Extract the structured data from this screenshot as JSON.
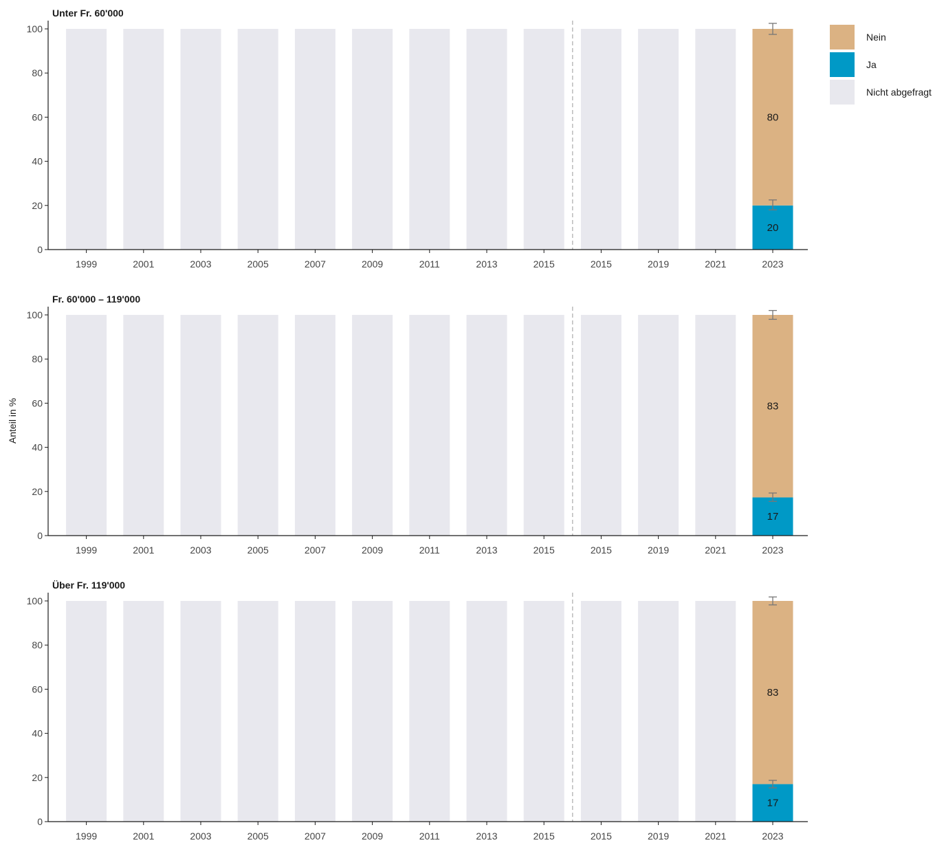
{
  "chart_data": {
    "type": "bar",
    "stacked": true,
    "ylabel": "Anteil in %",
    "ylim": [
      0,
      100
    ],
    "yticks": [
      0,
      20,
      40,
      60,
      80,
      100
    ],
    "categories": [
      "1999",
      "2001",
      "2003",
      "2005",
      "2007",
      "2009",
      "2011",
      "2013",
      "2015",
      "2015",
      "2019",
      "2021",
      "2023"
    ],
    "separator_after_index": 8,
    "legend": {
      "position": "top-right",
      "items": [
        {
          "name": "Nein",
          "color": "#dbb283"
        },
        {
          "name": "Ja",
          "color": "#0099c6"
        },
        {
          "name": "Nicht abgefragt",
          "color": "#e8e8ee"
        }
      ]
    },
    "colors": {
      "nein": "#dbb283",
      "ja": "#0099c6",
      "not_asked": "#e8e8ee",
      "separator": "#bbbbbb",
      "error_bar": "#777777"
    },
    "panels": [
      {
        "title": "Unter Fr. 60'000",
        "series": [
          {
            "name": "Ja",
            "values": [
              null,
              null,
              null,
              null,
              null,
              null,
              null,
              null,
              null,
              null,
              null,
              null,
              20
            ]
          },
          {
            "name": "Nein",
            "values": [
              null,
              null,
              null,
              null,
              null,
              null,
              null,
              null,
              null,
              null,
              null,
              null,
              80
            ]
          },
          {
            "name": "Nicht abgefragt",
            "values": [
              100,
              100,
              100,
              100,
              100,
              100,
              100,
              100,
              100,
              100,
              100,
              100,
              null
            ]
          }
        ],
        "data_labels": {
          "Ja": "20",
          "Nein": "80"
        },
        "error_bars": {
          "Ja": [
            18,
            22.5
          ],
          "Nein": [
            97.5,
            102.5
          ]
        }
      },
      {
        "title": "Fr. 60'000 – 119'000",
        "series": [
          {
            "name": "Ja",
            "values": [
              null,
              null,
              null,
              null,
              null,
              null,
              null,
              null,
              null,
              null,
              null,
              null,
              17.3
            ]
          },
          {
            "name": "Nein",
            "values": [
              null,
              null,
              null,
              null,
              null,
              null,
              null,
              null,
              null,
              null,
              null,
              null,
              82.7
            ]
          },
          {
            "name": "Nicht abgefragt",
            "values": [
              100,
              100,
              100,
              100,
              100,
              100,
              100,
              100,
              100,
              100,
              100,
              100,
              null
            ]
          }
        ],
        "data_labels": {
          "Ja": "17",
          "Nein": "83"
        },
        "error_bars": {
          "Ja": [
            15.5,
            19.3
          ],
          "Nein": [
            98,
            102
          ]
        }
      },
      {
        "title": "Über Fr. 119'000",
        "series": [
          {
            "name": "Ja",
            "values": [
              null,
              null,
              null,
              null,
              null,
              null,
              null,
              null,
              null,
              null,
              null,
              null,
              17
            ]
          },
          {
            "name": "Nein",
            "values": [
              null,
              null,
              null,
              null,
              null,
              null,
              null,
              null,
              null,
              null,
              null,
              null,
              83
            ]
          },
          {
            "name": "Nicht abgefragt",
            "values": [
              100,
              100,
              100,
              100,
              100,
              100,
              100,
              100,
              100,
              100,
              100,
              100,
              null
            ]
          }
        ],
        "data_labels": {
          "Ja": "17",
          "Nein": "83"
        },
        "error_bars": {
          "Ja": [
            15.3,
            18.7
          ],
          "Nein": [
            98.2,
            101.8
          ]
        }
      }
    ]
  }
}
